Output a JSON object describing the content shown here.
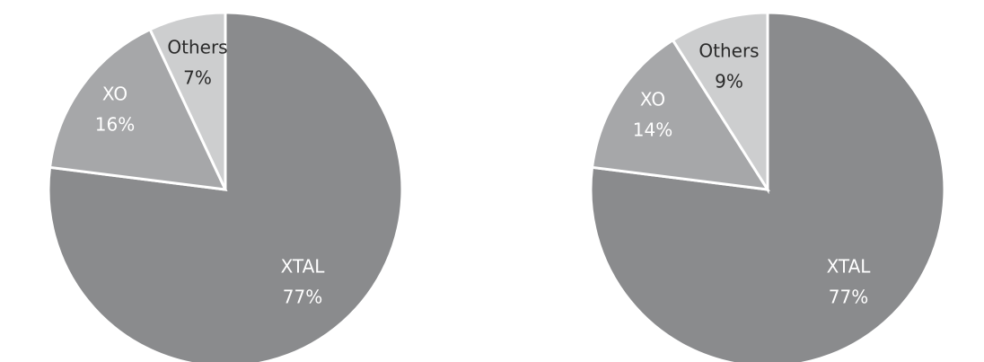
{
  "chart_data": [
    {
      "type": "pie",
      "slices": [
        {
          "label": "XTAL",
          "value": 77,
          "value_text": "77%",
          "color": "#8a8b8d",
          "label_color": "#ffffff"
        },
        {
          "label": "XO",
          "value": 16,
          "value_text": "16%",
          "color": "#a6a7a9",
          "label_color": "#ffffff"
        },
        {
          "label": "Others",
          "value": 7,
          "value_text": "7%",
          "color": "#cdcecf",
          "label_color": "#2a2a2a"
        }
      ],
      "start": "12 o'clock",
      "direction": "clockwise"
    },
    {
      "type": "pie",
      "slices": [
        {
          "label": "XTAL",
          "value": 77,
          "value_text": "77%",
          "color": "#8a8b8d",
          "label_color": "#ffffff"
        },
        {
          "label": "XO",
          "value": 14,
          "value_text": "14%",
          "color": "#a6a7a9",
          "label_color": "#ffffff"
        },
        {
          "label": "Others",
          "value": 9,
          "value_text": "9%",
          "color": "#cdcecf",
          "label_color": "#2a2a2a"
        }
      ],
      "start": "12 o'clock",
      "direction": "clockwise"
    }
  ]
}
